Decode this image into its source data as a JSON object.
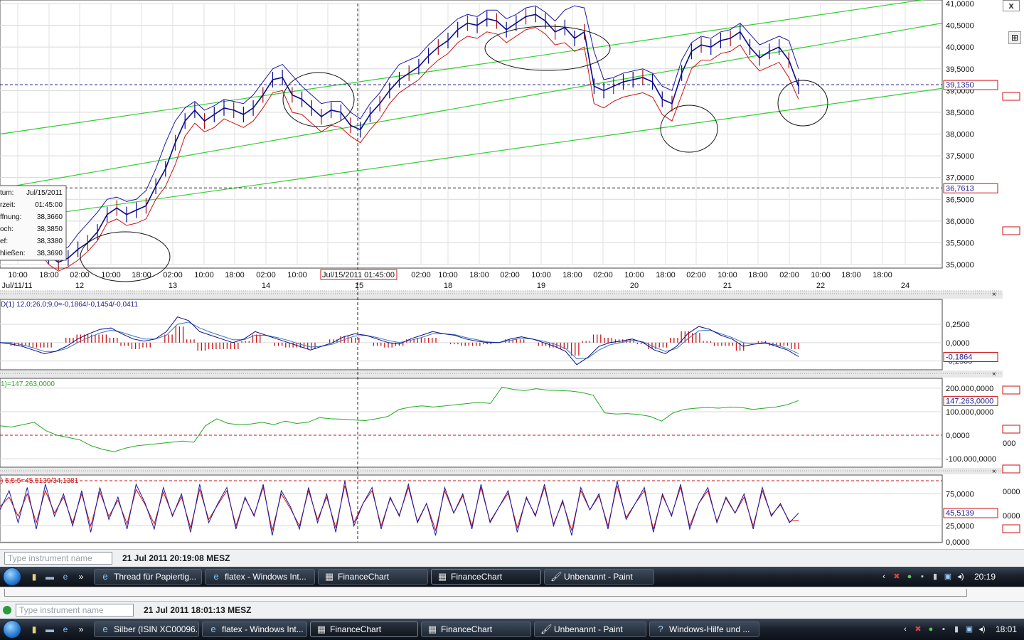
{
  "window": {
    "close_label": "x",
    "pin_label": "⊞"
  },
  "tooltip": {
    "rows": [
      {
        "label": "tum:",
        "value": "Jul/15/2011"
      },
      {
        "label": "rzeit:",
        "value": "01:45:00"
      },
      {
        "label": "ffnung:",
        "value": "38,3660"
      },
      {
        "label": "och:",
        "value": "38,3850"
      },
      {
        "label": "ef:",
        "value": "38,3380"
      },
      {
        "label": "hließen:",
        "value": "38,3690"
      }
    ]
  },
  "colors": {
    "price": "#0a0a8c",
    "band_lower": "#cc1111",
    "band_upper": "#1a1aa8",
    "channel": "#33cc33",
    "macd_hist": "#cc1111",
    "volume": "#22aa22",
    "stoch_k": "#1a1aa8",
    "stoch_d": "#cc1111",
    "price_tag": "#cc1111"
  },
  "chart_data": [
    {
      "type": "line",
      "name": "price",
      "y_ticks": [
        "41,0000",
        "40,5000",
        "40,0000",
        "39,5000",
        "39,0000",
        "38,5000",
        "38,0000",
        "37,5000",
        "37,0000",
        "36,5000",
        "36,0000",
        "35,5000",
        "35,0000"
      ],
      "ylim": [
        35.0,
        41.0
      ],
      "x_time_labels": [
        "10:00",
        "18:00",
        "02:00",
        "10:00",
        "18:00",
        "02:00",
        "10:00",
        "18:00",
        "02:00",
        "10:00",
        "",
        "18:00",
        "02:00",
        "10:00",
        "18:00",
        "02:00",
        "10:00",
        "18:00",
        "02:00",
        "10:00",
        "18:00",
        "02:00",
        "10:00",
        "18:00",
        "02:00",
        "10:00",
        "18:00",
        "18:00"
      ],
      "x_day_labels": [
        "Jul/11/11",
        "12",
        "13",
        "14",
        "15",
        "18",
        "19",
        "20",
        "21",
        "22",
        "24"
      ],
      "cursor_label": "Jul/15/2011 01:45:00",
      "cursor_value": "36,7613",
      "last_value": "39,1350",
      "closes": [
        35.82,
        35.85,
        35.9,
        35.78,
        35.55,
        35.2,
        35.05,
        35.15,
        35.35,
        35.5,
        35.75,
        36.15,
        36.3,
        36.15,
        36.25,
        36.35,
        36.8,
        37.2,
        37.8,
        38.3,
        38.55,
        38.3,
        38.45,
        38.6,
        38.55,
        38.45,
        38.6,
        38.9,
        39.25,
        39.3,
        38.9,
        38.8,
        38.6,
        38.4,
        38.55,
        38.5,
        38.2,
        38.1,
        38.45,
        38.7,
        39.0,
        39.25,
        39.4,
        39.55,
        39.8,
        40.0,
        40.15,
        40.4,
        40.55,
        40.5,
        40.65,
        40.6,
        40.4,
        40.55,
        40.7,
        40.75,
        40.6,
        40.35,
        40.45,
        40.2,
        40.35,
        39.1,
        39.0,
        39.1,
        39.2,
        39.25,
        39.3,
        39.2,
        38.8,
        38.7,
        39.4,
        39.9,
        40.05,
        40.0,
        40.15,
        40.2,
        40.35,
        40.0,
        39.75,
        39.9,
        40.0,
        39.7,
        39.1
      ],
      "band_upper": [
        35.95,
        36.0,
        36.05,
        35.95,
        35.75,
        35.45,
        35.3,
        35.4,
        35.7,
        35.95,
        36.2,
        36.5,
        36.55,
        36.45,
        36.5,
        36.7,
        37.2,
        37.8,
        38.3,
        38.6,
        38.75,
        38.55,
        38.65,
        38.8,
        38.75,
        38.7,
        38.9,
        39.2,
        39.5,
        39.6,
        39.35,
        39.1,
        38.9,
        38.7,
        38.75,
        38.75,
        38.5,
        38.35,
        38.7,
        38.95,
        39.3,
        39.6,
        39.7,
        39.8,
        40.05,
        40.25,
        40.45,
        40.65,
        40.75,
        40.7,
        40.85,
        40.85,
        40.65,
        40.75,
        40.9,
        40.95,
        40.8,
        40.6,
        40.85,
        40.95,
        40.9,
        39.9,
        39.25,
        39.3,
        39.4,
        39.45,
        39.5,
        39.4,
        39.1,
        39.0,
        39.7,
        40.1,
        40.25,
        40.2,
        40.35,
        40.4,
        40.55,
        40.3,
        40.05,
        40.15,
        40.25,
        40.15,
        39.5
      ],
      "band_lower": [
        35.6,
        35.65,
        35.7,
        35.55,
        35.3,
        35.0,
        34.85,
        34.95,
        35.1,
        35.3,
        35.55,
        35.95,
        36.05,
        35.9,
        35.95,
        36.05,
        36.5,
        36.8,
        37.3,
        37.95,
        38.25,
        38.05,
        38.15,
        38.35,
        38.25,
        38.15,
        38.3,
        38.6,
        38.95,
        39.0,
        38.5,
        38.45,
        38.25,
        38.05,
        38.2,
        38.15,
        37.95,
        37.8,
        38.1,
        38.35,
        38.7,
        38.95,
        39.1,
        39.25,
        39.5,
        39.7,
        39.85,
        40.1,
        40.25,
        40.2,
        40.35,
        40.3,
        40.1,
        40.25,
        40.4,
        40.45,
        40.3,
        40.05,
        40.1,
        39.9,
        40.0,
        38.7,
        38.6,
        38.75,
        38.85,
        38.9,
        38.95,
        38.85,
        38.45,
        38.3,
        38.9,
        39.5,
        39.7,
        39.7,
        39.85,
        39.9,
        40.05,
        39.7,
        39.45,
        39.55,
        39.65,
        39.3,
        38.8
      ],
      "channel_lines": [
        {
          "x0": 0,
          "y0": 36.0,
          "x1": 1325,
          "y1": 39.05
        },
        {
          "x0": 0,
          "y0": 36.75,
          "x1": 1325,
          "y1": 40.55
        },
        {
          "x0": 0,
          "y0": 38.0,
          "x1": 1325,
          "y1": 41.15
        }
      ]
    },
    {
      "type": "bar",
      "name": "macd",
      "legend": "D(1) 12,0;26,0;9,0=-0,1864/-0,1454/-0,0411",
      "y_ticks": [
        "0,2500",
        "0,0000",
        "-0,2500"
      ],
      "ylim": [
        -0.35,
        0.55
      ],
      "last_value": "-0,1864",
      "line1": [
        0.0,
        -0.02,
        -0.05,
        -0.1,
        -0.15,
        -0.12,
        -0.05,
        0.05,
        0.12,
        0.18,
        0.2,
        0.12,
        0.05,
        0.02,
        0.05,
        0.15,
        0.35,
        0.3,
        0.15,
        0.1,
        0.05,
        0.0,
        0.05,
        0.15,
        0.1,
        0.05,
        0.0,
        -0.05,
        -0.1,
        -0.05,
        0.0,
        0.08,
        0.12,
        0.1,
        0.05,
        0.0,
        -0.02,
        0.05,
        0.1,
        0.15,
        0.12,
        0.1,
        0.05,
        0.02,
        0.0,
        0.0,
        0.05,
        0.08,
        0.05,
        0.0,
        -0.05,
        -0.12,
        -0.3,
        -0.2,
        -0.05,
        0.0,
        0.02,
        0.05,
        0.0,
        -0.1,
        -0.15,
        -0.05,
        0.12,
        0.22,
        0.18,
        0.1,
        0.05,
        -0.05,
        -0.02,
        0.0,
        -0.05,
        -0.1,
        -0.19
      ],
      "line2": [
        0.0,
        0.0,
        -0.03,
        -0.07,
        -0.12,
        -0.12,
        -0.08,
        0.0,
        0.07,
        0.13,
        0.17,
        0.14,
        0.09,
        0.05,
        0.05,
        0.1,
        0.25,
        0.28,
        0.2,
        0.14,
        0.09,
        0.04,
        0.04,
        0.1,
        0.1,
        0.07,
        0.03,
        -0.02,
        -0.06,
        -0.05,
        -0.02,
        0.04,
        0.09,
        0.1,
        0.07,
        0.03,
        0.0,
        0.03,
        0.07,
        0.12,
        0.12,
        0.11,
        0.07,
        0.04,
        0.01,
        0.0,
        0.03,
        0.06,
        0.05,
        0.02,
        -0.02,
        -0.08,
        -0.22,
        -0.21,
        -0.1,
        -0.03,
        0.0,
        0.03,
        0.01,
        -0.06,
        -0.12,
        -0.08,
        0.05,
        0.16,
        0.17,
        0.12,
        0.07,
        0.0,
        -0.02,
        -0.01,
        -0.03,
        -0.08,
        -0.15
      ]
    },
    {
      "type": "line",
      "name": "volume",
      "legend": "1)=147.263,0000",
      "y_ticks": [
        "200.000,0000",
        "100.000,0000",
        "0,0000",
        "-100.000,0000"
      ],
      "ylim": [
        -130000,
        230000
      ],
      "last_value": "147.263,0000",
      "values": [
        40000,
        35000,
        45000,
        55000,
        20000,
        0,
        -10000,
        -20000,
        -45000,
        -60000,
        -70000,
        -55000,
        -45000,
        -40000,
        -35000,
        -30000,
        -25000,
        -30000,
        40000,
        70000,
        50000,
        45000,
        48000,
        55000,
        45000,
        60000,
        50000,
        55000,
        75000,
        70000,
        68000,
        65000,
        62000,
        70000,
        80000,
        110000,
        120000,
        125000,
        120000,
        125000,
        130000,
        135000,
        140000,
        135000,
        205000,
        195000,
        190000,
        198000,
        192000,
        190000,
        188000,
        182000,
        170000,
        95000,
        90000,
        92000,
        88000,
        80000,
        60000,
        95000,
        110000,
        115000,
        118000,
        115000,
        120000,
        118000,
        110000,
        115000,
        120000,
        130000,
        147263
      ]
    },
    {
      "type": "line",
      "name": "stochastic",
      "legend": ") 5;5;5=45,5139/34,1381",
      "y_ticks": [
        "75,0000",
        "25,0000",
        "0,0000"
      ],
      "ylim": [
        0,
        100
      ],
      "last_value": "45,5139",
      "k_values": [
        50,
        80,
        30,
        85,
        20,
        90,
        40,
        75,
        25,
        80,
        15,
        85,
        35,
        70,
        20,
        90,
        60,
        20,
        85,
        40,
        75,
        15,
        90,
        30,
        60,
        85,
        20,
        70,
        40,
        90,
        10,
        80,
        55,
        20,
        85,
        30,
        75,
        15,
        95,
        25,
        60,
        85,
        20,
        70,
        40,
        90,
        30,
        60,
        10,
        85,
        45,
        75,
        20,
        90,
        30,
        55,
        80,
        15,
        70,
        40,
        90,
        25,
        65,
        10,
        85,
        50,
        75,
        20,
        95,
        35,
        60,
        85,
        15,
        75,
        40,
        90,
        20,
        60,
        85,
        30,
        70,
        45,
        75,
        20,
        85,
        40,
        60,
        30,
        45
      ],
      "d_values": [
        55,
        70,
        40,
        75,
        30,
        80,
        45,
        70,
        30,
        75,
        25,
        78,
        40,
        65,
        28,
        82,
        58,
        28,
        78,
        42,
        70,
        22,
        82,
        35,
        58,
        80,
        25,
        68,
        42,
        85,
        18,
        75,
        52,
        25,
        80,
        35,
        70,
        22,
        88,
        30,
        60,
        80,
        25,
        68,
        42,
        85,
        32,
        60,
        18,
        80,
        45,
        72,
        25,
        85,
        32,
        55,
        76,
        22,
        68,
        42,
        85,
        28,
        62,
        18,
        80,
        50,
        72,
        25,
        88,
        38,
        60,
        80,
        20,
        72,
        42,
        85,
        25,
        60,
        80,
        32,
        68,
        45,
        70,
        25,
        80,
        42,
        58,
        32,
        34
      ]
    }
  ],
  "statusbars": [
    {
      "placeholder": "Type instrument name",
      "timestamp": "21 Jul 2011 20:19:08 MESZ"
    },
    {
      "placeholder": "Type instrument name",
      "timestamp": "21 Jul 2011 18:01:13 MESZ"
    }
  ],
  "taskbars": [
    {
      "more": "»",
      "tasks": [
        {
          "label": "Thread für Papiertig...",
          "icon": "ie-icon"
        },
        {
          "label": "flatex - Windows Int...",
          "icon": "ie-icon"
        },
        {
          "label": "FinanceChart",
          "icon": "chart-icon"
        },
        {
          "label": "FinanceChart",
          "icon": "chart-icon",
          "active": true
        },
        {
          "label": "Unbenannt - Paint",
          "icon": "paint-icon"
        }
      ],
      "clock": "20:19"
    },
    {
      "more": "»",
      "tasks": [
        {
          "label": "Silber (ISIN XC00096...",
          "icon": "ie-icon"
        },
        {
          "label": "flatex - Windows Int...",
          "icon": "ie-icon"
        },
        {
          "label": "FinanceChart",
          "icon": "chart-icon",
          "active": true
        },
        {
          "label": "FinanceChart",
          "icon": "chart-icon"
        },
        {
          "label": "Unbenannt - Paint",
          "icon": "paint-icon"
        },
        {
          "label": "Windows-Hilfe und ...",
          "icon": "help-icon"
        }
      ],
      "clock": "18:01"
    }
  ],
  "edge_labels": [
    "000",
    "0000",
    "0000"
  ]
}
